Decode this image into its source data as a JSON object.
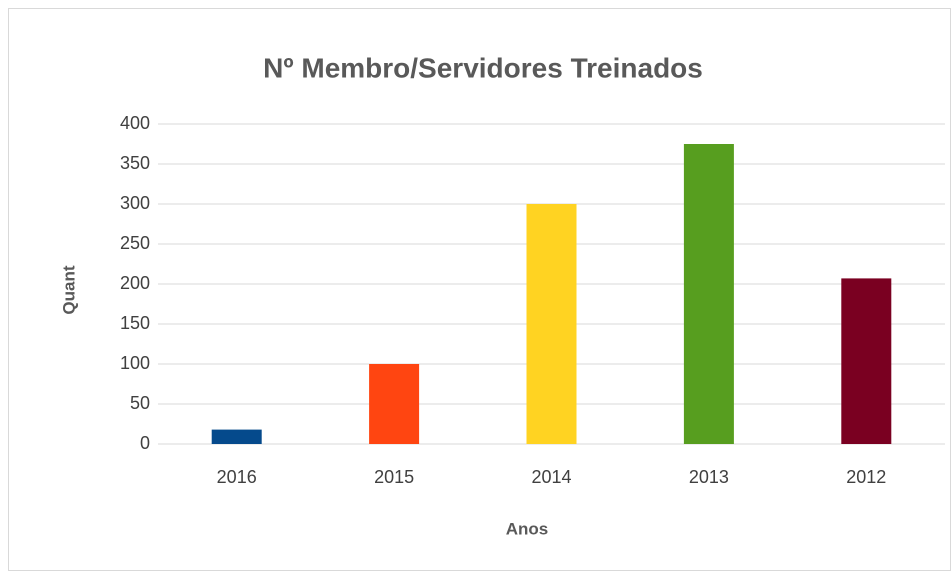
{
  "chart_data": {
    "type": "bar",
    "title": "Nº Membro/Servidores Treinados",
    "x_label": "Anos",
    "y_label": "Quant",
    "categories": [
      "2016",
      "2015",
      "2014",
      "2013",
      "2012"
    ],
    "values": [
      18,
      100,
      300,
      375,
      207
    ],
    "colors": [
      "#054a8c",
      "#ff4511",
      "#ffd322",
      "#579e1f",
      "#7a0021"
    ],
    "ylim": [
      0,
      400
    ],
    "yticks": [
      0,
      50,
      100,
      150,
      200,
      250,
      300,
      350,
      400
    ],
    "grid": true
  }
}
